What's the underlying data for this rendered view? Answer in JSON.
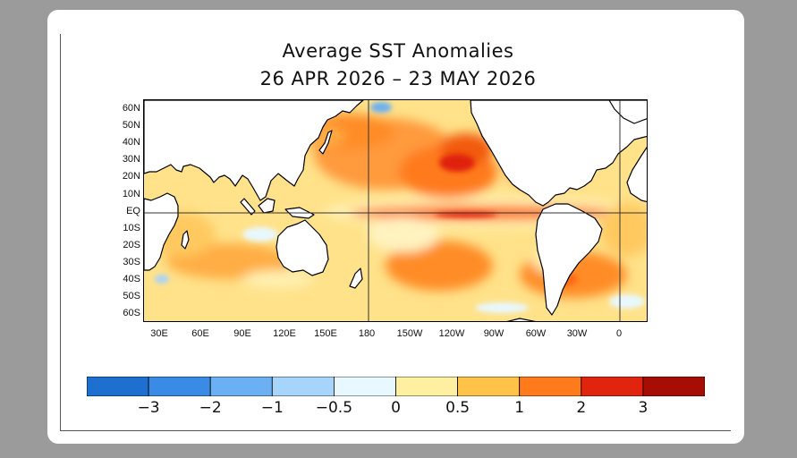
{
  "title": {
    "line1": "Average SST Anomalies",
    "line2": "26 APR 2026 – 23 MAY 2026"
  },
  "map": {
    "lat_labels": [
      "60N",
      "50N",
      "40N",
      "30N",
      "20N",
      "10N",
      "EQ",
      "10S",
      "20S",
      "30S",
      "40S",
      "50S",
      "60S"
    ],
    "lon_labels": [
      "30E",
      "60E",
      "90E",
      "120E",
      "150E",
      "180",
      "150W",
      "120W",
      "90W",
      "60W",
      "30W",
      "0"
    ],
    "ocean_base_color": "#ffe28a",
    "land_color": "#ffffff"
  },
  "colorbar": {
    "labels": [
      "−3",
      "−2",
      "−1",
      "−0.5",
      "0",
      "0.5",
      "1",
      "2",
      "3"
    ],
    "colors": [
      "#1f6fd0",
      "#3a8be6",
      "#6bb0f2",
      "#a6d4fa",
      "#e8f8ff",
      "#ffefa0",
      "#ffc34a",
      "#ff7a1a",
      "#e0240e",
      "#a50d05"
    ]
  }
}
